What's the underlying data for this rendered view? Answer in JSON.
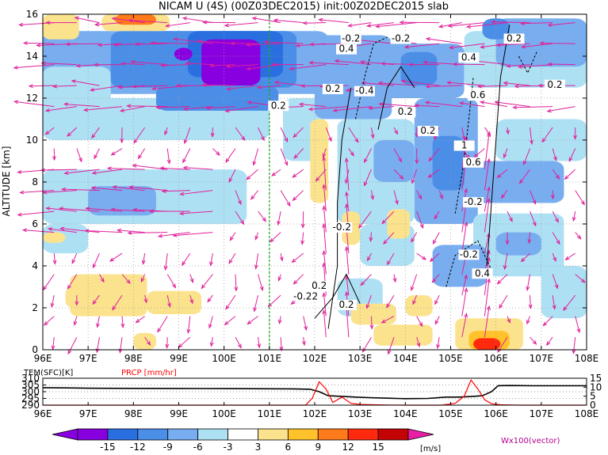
{
  "chart_data": [
    {
      "type": "heatmap",
      "title": "NICAM U (4S) (00Z03DEC2015) init:00Z02DEC2015 slab",
      "ylabel": "ALTITUDE [km]",
      "xlim": [
        96,
        108
      ],
      "ylim": [
        0,
        16
      ],
      "x_ticks": [
        "96E",
        "97E",
        "98E",
        "99E",
        "100E",
        "101E",
        "102E",
        "103E",
        "104E",
        "105E",
        "106E",
        "107E",
        "108E"
      ],
      "y_ticks": [
        "0",
        "2",
        "4",
        "6",
        "8",
        "10",
        "12",
        "14",
        "16"
      ],
      "grid": true,
      "reference_line_x": 101,
      "contour_labels": [
        "0.2",
        "-0.2",
        "0.2",
        "0.4",
        "-0.4",
        "-0.2",
        "0.2",
        "0.2",
        "0.4",
        "0.6",
        "0.2",
        "0.2",
        "-0.2",
        "0.2",
        "-0.2",
        "0.4",
        "-0.22",
        "0.2",
        "1",
        "0.6",
        "-0.2"
      ],
      "colorbar": {
        "unit": "[m/s]",
        "levels": [
          "-15",
          "-12",
          "-9",
          "-6",
          "-3",
          "3",
          "6",
          "9",
          "12",
          "15"
        ],
        "colors": [
          "#8800e0",
          "#2a6fe0",
          "#4a8ee8",
          "#78aef0",
          "#aee0f4",
          "#ffffff",
          "#fbe38e",
          "#ffc22a",
          "#ff7a1a",
          "#ff2a0e",
          "#c40404"
        ],
        "under_color": "#8800e0",
        "over_color": "#e81ea6"
      },
      "vector_label": "Wx100(vector)",
      "vector_color": "#e0209a"
    },
    {
      "type": "line",
      "xlim": [
        96,
        108
      ],
      "series": [
        {
          "name": "TEM(SFC)[K]",
          "color": "#000000",
          "axis": "left",
          "x": [
            96,
            96.5,
            97,
            98,
            99,
            100,
            101,
            101.5,
            101.9,
            102.1,
            102.3,
            102.6,
            102.9,
            103.2,
            103.6,
            104,
            104.5,
            104.9,
            105.2,
            105.5,
            105.7,
            105.9,
            106.05,
            106.3,
            106.8,
            107.3,
            107.8,
            108
          ],
          "y": [
            303,
            302.8,
            302.6,
            302.5,
            302.4,
            302.3,
            302.2,
            302.1,
            301.8,
            300,
            297,
            296.5,
            296,
            295.6,
            295.2,
            294.8,
            295,
            296,
            296,
            296.5,
            297,
            300,
            304.5,
            304.6,
            304.4,
            304.4,
            304.4,
            304.4
          ]
        },
        {
          "name": "PRCP [mm/hr]",
          "color": "#ff0000",
          "axis": "right",
          "x": [
            96,
            101.8,
            101.95,
            102.1,
            102.25,
            102.4,
            102.6,
            102.8,
            103.0,
            103.3,
            103.6,
            104,
            104.8,
            105.1,
            105.3,
            105.45,
            105.6,
            105.75,
            105.9,
            106.1,
            106.5,
            108
          ],
          "y": [
            0,
            0,
            4,
            13,
            9,
            1.5,
            4.5,
            1,
            0.4,
            0.2,
            0.1,
            0,
            0,
            1,
            5,
            14,
            9,
            3,
            0.8,
            0.2,
            0,
            0
          ]
        }
      ],
      "left_ticks": [
        "310",
        "305",
        "300",
        "295",
        "290"
      ],
      "left_lim": [
        290,
        310
      ],
      "right_ticks": [
        "15",
        "10",
        "5",
        "0"
      ],
      "right_lim": [
        0,
        15
      ],
      "x_ticks": [
        "96E",
        "97E",
        "98E",
        "99E",
        "100E",
        "101E",
        "102E",
        "103E",
        "104E",
        "105E",
        "106E",
        "107E",
        "108E"
      ],
      "label_tem": "TEM(SFC)[K]",
      "label_prcp": "PRCP [mm/hr]"
    }
  ]
}
